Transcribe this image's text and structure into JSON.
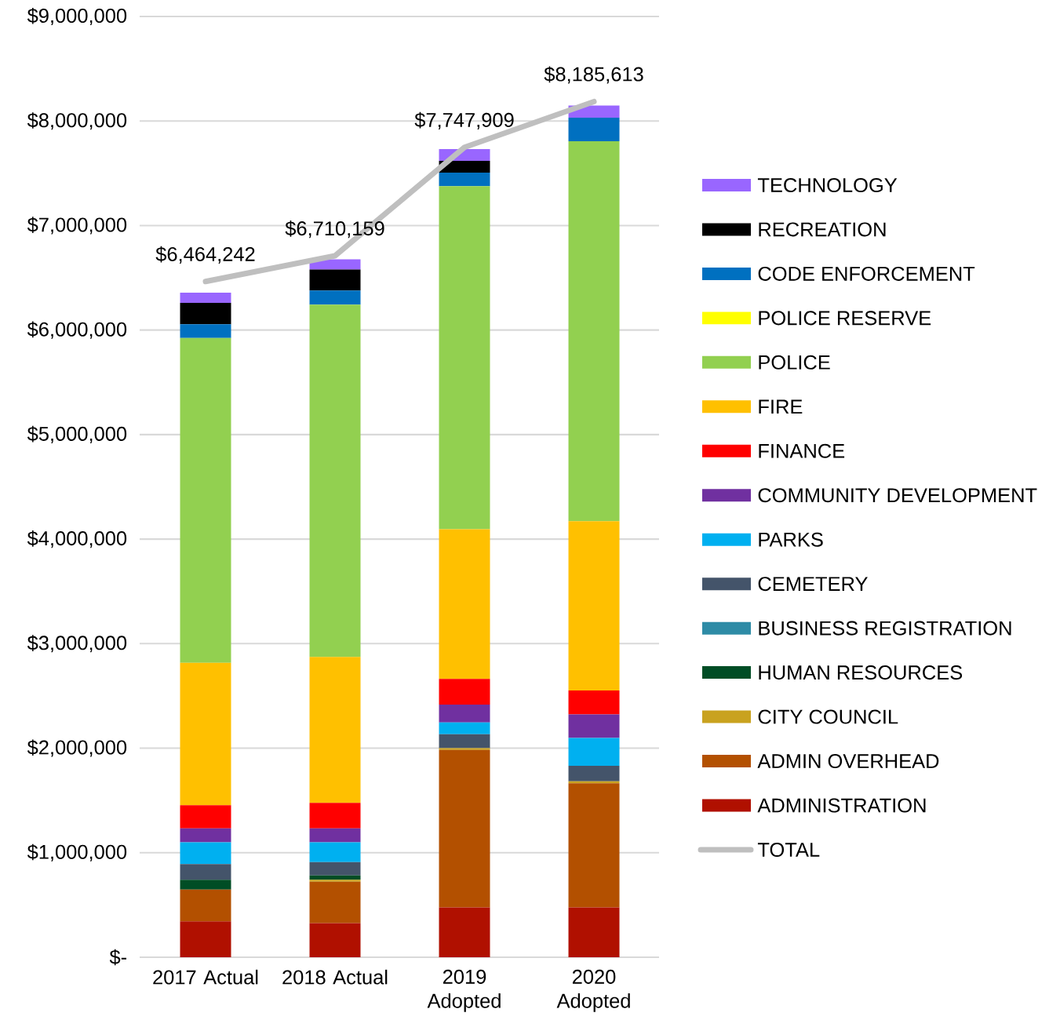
{
  "chart_data": {
    "type": "bar",
    "stacked": true,
    "grid": "y",
    "legend": "right",
    "categories": [
      "2017 Actual",
      "2018 Actual",
      "2019 Adopted",
      "2020 Adopted"
    ],
    "ylim": [
      0,
      9000000
    ],
    "yticks": [
      {
        "value": 0,
        "label": "$-"
      },
      {
        "value": 1000000,
        "label": "$1,000,000"
      },
      {
        "value": 2000000,
        "label": "$2,000,000"
      },
      {
        "value": 3000000,
        "label": "$3,000,000"
      },
      {
        "value": 4000000,
        "label": "$4,000,000"
      },
      {
        "value": 5000000,
        "label": "$5,000,000"
      },
      {
        "value": 6000000,
        "label": "$6,000,000"
      },
      {
        "value": 7000000,
        "label": "$7,000,000"
      },
      {
        "value": 8000000,
        "label": "$8,000,000"
      },
      {
        "value": 9000000,
        "label": "$9,000,000"
      }
    ],
    "series": [
      {
        "name": "ADMINISTRATION",
        "color": "#b01000",
        "values": [
          344000,
          327000,
          477000,
          477000
        ]
      },
      {
        "name": "ADMIN OVERHEAD",
        "color": "#b35000",
        "values": [
          303000,
          395000,
          1506000,
          1187000
        ]
      },
      {
        "name": "CITY COUNCIL",
        "color": "#c9a21f",
        "values": [
          0,
          20000,
          18000,
          20000
        ]
      },
      {
        "name": "HUMAN RESOURCES",
        "color": "#004d25",
        "values": [
          95000,
          40000,
          0,
          0
        ]
      },
      {
        "name": "BUSINESS REGISTRATION",
        "color": "#2e8ba6",
        "values": [
          0,
          0,
          0,
          0
        ]
      },
      {
        "name": "CEMETERY",
        "color": "#44546a",
        "values": [
          150000,
          128000,
          133000,
          147000
        ]
      },
      {
        "name": "PARKS",
        "color": "#00b0f0",
        "values": [
          208000,
          190000,
          112000,
          266000
        ]
      },
      {
        "name": "COMMUNITY DEVELOPMENT",
        "color": "#7030a0",
        "values": [
          133000,
          133000,
          170000,
          226000
        ]
      },
      {
        "name": "FINANCE",
        "color": "#ff0000",
        "values": [
          222000,
          244000,
          246000,
          229000
        ]
      },
      {
        "name": "FIRE",
        "color": "#ffc000",
        "values": [
          1362000,
          1395000,
          1433000,
          1620000
        ]
      },
      {
        "name": "POLICE",
        "color": "#92d050",
        "values": [
          3108000,
          3371000,
          3281000,
          3634000
        ]
      },
      {
        "name": "POLICE RESERVE",
        "color": "#ffff00",
        "values": [
          0,
          0,
          0,
          0
        ]
      },
      {
        "name": "CODE ENFORCEMENT",
        "color": "#0070c0",
        "values": [
          130000,
          135000,
          130000,
          226000
        ]
      },
      {
        "name": "RECREATION",
        "color": "#000000",
        "values": [
          205000,
          201000,
          113000,
          0
        ]
      },
      {
        "name": "TECHNOLOGY",
        "color": "#9966ff",
        "values": [
          97000,
          97000,
          112000,
          115000
        ]
      },
      {
        "name": "TOTAL",
        "type": "line",
        "color": "#bfbfbf",
        "values": [
          6464242,
          6710159,
          7747909,
          8185613
        ],
        "value_labels": [
          "$6,464,242",
          "$6,710,159",
          "$7,747,909",
          "$8,185,613"
        ]
      }
    ]
  }
}
